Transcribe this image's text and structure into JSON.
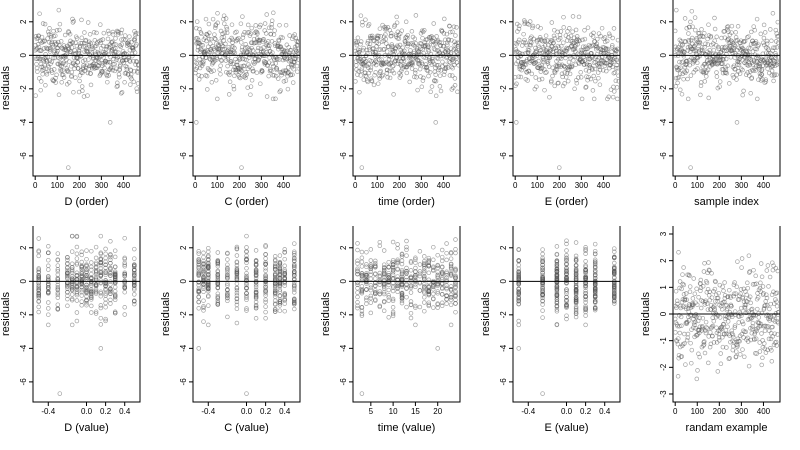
{
  "chart_data": [
    {
      "type": "scatter",
      "xlabel": "D (order)",
      "ylabel": "residuals",
      "xlim": [
        -10,
        475
      ],
      "ylim": [
        -7.2,
        3.3
      ],
      "xticks": [
        0,
        100,
        200,
        300,
        400
      ],
      "yticks": [
        -6,
        -4,
        -2,
        0,
        2
      ],
      "reference_line_y": 0,
      "points": {
        "kind": "order",
        "n": 470,
        "distribution": "normal(0,1)",
        "outliers": [
          [
            340,
            -4.0
          ],
          [
            150,
            -6.7
          ]
        ]
      }
    },
    {
      "type": "scatter",
      "xlabel": "C (order)",
      "ylabel": "residuals",
      "xlim": [
        -10,
        475
      ],
      "ylim": [
        -7.2,
        3.3
      ],
      "xticks": [
        0,
        100,
        200,
        300,
        400
      ],
      "yticks": [
        -6,
        -4,
        -2,
        0,
        2
      ],
      "reference_line_y": 0,
      "points": {
        "kind": "order",
        "n": 470,
        "distribution": "normal(0,1)",
        "outliers": [
          [
            5,
            -4.0
          ],
          [
            210,
            -6.7
          ]
        ]
      }
    },
    {
      "type": "scatter",
      "xlabel": "time (order)",
      "ylabel": "residuals",
      "xlim": [
        -10,
        475
      ],
      "ylim": [
        -7.2,
        3.3
      ],
      "xticks": [
        0,
        100,
        200,
        300,
        400
      ],
      "yticks": [
        -6,
        -4,
        -2,
        0,
        2
      ],
      "reference_line_y": 0,
      "points": {
        "kind": "order",
        "n": 470,
        "distribution": "normal(0,1)",
        "outliers": [
          [
            365,
            -4.0
          ],
          [
            30,
            -6.7
          ]
        ]
      }
    },
    {
      "type": "scatter",
      "xlabel": "E (order)",
      "ylabel": "residuals",
      "xlim": [
        -10,
        475
      ],
      "ylim": [
        -7.2,
        3.3
      ],
      "xticks": [
        0,
        100,
        200,
        300,
        400
      ],
      "yticks": [
        -6,
        -4,
        -2,
        0,
        2
      ],
      "reference_line_y": 0,
      "points": {
        "kind": "order",
        "n": 470,
        "distribution": "normal(0,1)",
        "outliers": [
          [
            5,
            -4.0
          ],
          [
            200,
            -6.7
          ]
        ]
      }
    },
    {
      "type": "scatter",
      "xlabel": "sample index",
      "ylabel": "residuals",
      "xlim": [
        -10,
        475
      ],
      "ylim": [
        -7.2,
        3.3
      ],
      "xticks": [
        0,
        100,
        200,
        300,
        400
      ],
      "yticks": [
        -6,
        -4,
        -2,
        0,
        2
      ],
      "reference_line_y": 0,
      "points": {
        "kind": "order",
        "n": 470,
        "distribution": "normal(0,1)",
        "outliers": [
          [
            280,
            -4.0
          ],
          [
            70,
            -6.7
          ]
        ]
      }
    },
    {
      "type": "scatter",
      "xlabel": "D (value)",
      "ylabel": "residuals",
      "xlim": [
        -0.56,
        0.56
      ],
      "ylim": [
        -7.2,
        3.3
      ],
      "xticks": [
        -0.4,
        0.0,
        0.2,
        0.4
      ],
      "xtick_labels": [
        "-0.4",
        "0.0",
        "0.2",
        "0.4"
      ],
      "yticks": [
        -6,
        -4,
        -2,
        0,
        2
      ],
      "reference_line_y": 0,
      "points": {
        "kind": "levels",
        "n": 470,
        "levels": [
          -0.5,
          -0.4,
          -0.3,
          -0.2,
          -0.15,
          -0.1,
          -0.05,
          0.0,
          0.05,
          0.1,
          0.15,
          0.2,
          0.25,
          0.3,
          0.4,
          0.5
        ],
        "outliers": [
          [
            0.15,
            -4.0
          ],
          [
            -0.28,
            -6.7
          ]
        ]
      }
    },
    {
      "type": "scatter",
      "xlabel": "C (value)",
      "ylabel": "residuals",
      "xlim": [
        -0.56,
        0.56
      ],
      "ylim": [
        -7.2,
        3.3
      ],
      "xticks": [
        -0.4,
        0.0,
        0.2,
        0.4
      ],
      "xtick_labels": [
        "-0.4",
        "0.0",
        "0.2",
        "0.4"
      ],
      "yticks": [
        -6,
        -4,
        -2,
        0,
        2
      ],
      "reference_line_y": 0,
      "points": {
        "kind": "levels",
        "n": 470,
        "levels": [
          -0.5,
          -0.45,
          -0.4,
          -0.3,
          -0.2,
          -0.1,
          0.0,
          0.1,
          0.2,
          0.3,
          0.35,
          0.4,
          0.5
        ],
        "outliers": [
          [
            -0.5,
            -4.0
          ],
          [
            0.0,
            -6.7
          ]
        ]
      }
    },
    {
      "type": "scatter",
      "xlabel": "time (value)",
      "ylabel": "residuals",
      "xlim": [
        1,
        25
      ],
      "ylim": [
        -7.2,
        3.3
      ],
      "xticks": [
        5,
        10,
        15,
        20
      ],
      "yticks": [
        -6,
        -4,
        -2,
        0,
        2
      ],
      "reference_line_y": 0,
      "points": {
        "kind": "levels",
        "n": 470,
        "levels": [
          2,
          3,
          4,
          5,
          6,
          7,
          8,
          9,
          10,
          11,
          12,
          13,
          14,
          15,
          16,
          17,
          18,
          19,
          20,
          21,
          22,
          23,
          24
        ],
        "outliers": [
          [
            20,
            -4.0
          ],
          [
            3,
            -6.7
          ]
        ]
      }
    },
    {
      "type": "scatter",
      "xlabel": "E (value)",
      "ylabel": "residuals",
      "xlim": [
        -0.56,
        0.56
      ],
      "ylim": [
        -7.2,
        3.3
      ],
      "xticks": [
        -0.4,
        0.0,
        0.2,
        0.4
      ],
      "xtick_labels": [
        "-0.4",
        "0.0",
        "0.2",
        "0.4"
      ],
      "yticks": [
        -6,
        -4,
        -2,
        0,
        2
      ],
      "reference_line_y": 0,
      "points": {
        "kind": "levels",
        "n": 470,
        "levels": [
          -0.5,
          -0.25,
          -0.1,
          0.0,
          0.1,
          0.2,
          0.3,
          0.5
        ],
        "outliers": [
          [
            -0.5,
            -4.0
          ],
          [
            -0.25,
            -6.7
          ]
        ]
      }
    },
    {
      "type": "scatter",
      "xlabel": "randam example",
      "ylabel": "residuals",
      "xlim": [
        -10,
        475
      ],
      "ylim": [
        -3.3,
        3.3
      ],
      "xticks": [
        0,
        100,
        200,
        300,
        400
      ],
      "yticks": [
        -3,
        -2,
        -1,
        0,
        1,
        2,
        3
      ],
      "reference_line_y": 0,
      "points": {
        "kind": "order",
        "n": 470,
        "distribution": "normal(0,1)",
        "outliers": []
      }
    }
  ]
}
